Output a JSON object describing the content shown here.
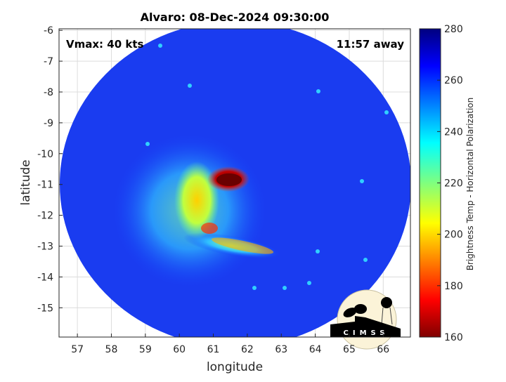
{
  "chart_data": {
    "type": "heatmap",
    "title": "Alvaro: 08-Dec-2024 09:30:00",
    "xlabel": "longitude",
    "ylabel": "latitude",
    "xlim": [
      56.46,
      66.8
    ],
    "ylim": [
      -15.95,
      -5.95
    ],
    "xticks": [
      "57",
      "58",
      "59",
      "60",
      "61",
      "62",
      "63",
      "64",
      "65",
      "66"
    ],
    "yticks": [
      "-6",
      "-7",
      "-8",
      "-9",
      "-10",
      "-11",
      "-12",
      "-13",
      "-14",
      "-15"
    ],
    "grid": true,
    "colormap": "jet",
    "colorbar": {
      "label": "Brightness Temp - Horizontal Polarization",
      "range": [
        160,
        280
      ],
      "ticks": [
        "160",
        "180",
        "200",
        "220",
        "240",
        "260",
        "280"
      ]
    },
    "annotations": {
      "vmax": "Vmax: 40 kts",
      "time_away": "11:57 away"
    },
    "features": {
      "coldest_core_center": [
        61.4,
        -10.9
      ],
      "coldest_core_temp": 165
    }
  },
  "logo": "CIMSS"
}
